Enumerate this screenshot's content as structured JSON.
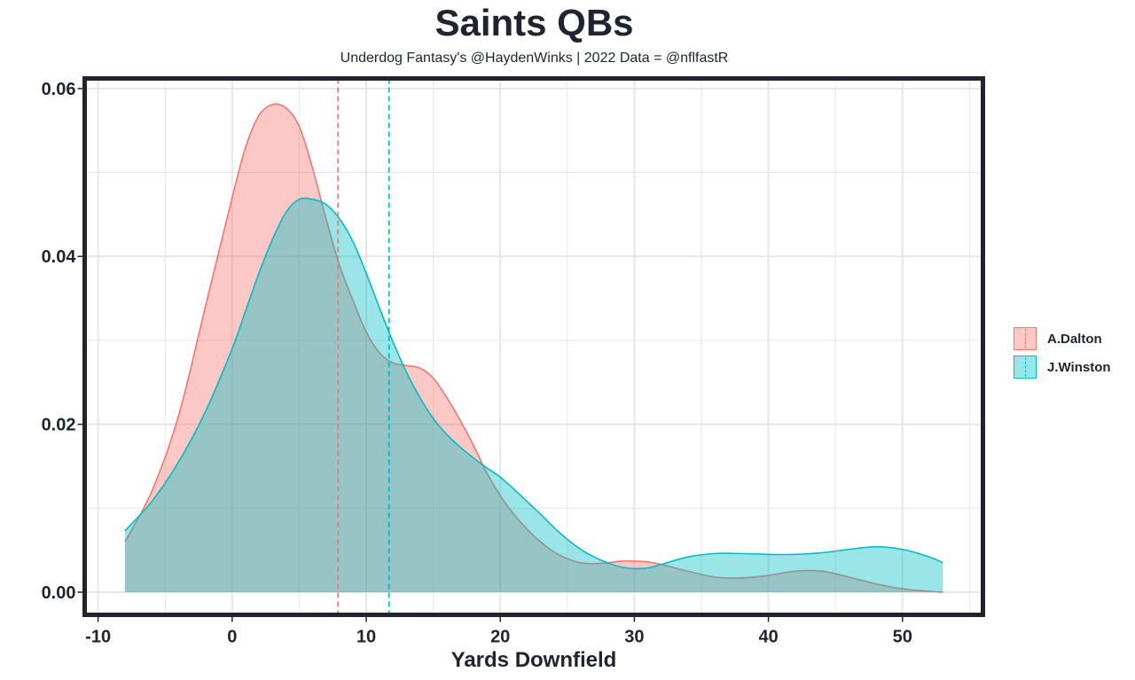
{
  "header": {
    "title": "Saints QBs",
    "subtitle": "Underdog Fantasy's @HaydenWinks | 2022 Data = @nflfastR"
  },
  "colors": {
    "dalton": "#F8766D",
    "winston": "#00BFC4",
    "panel_border": "#1f2430",
    "grid": "#e6e6e6"
  },
  "chart_data": {
    "type": "area",
    "title": "Saints QBs",
    "subtitle": "Underdog Fantasy's @HaydenWinks | 2022 Data = @nflfastR",
    "xlabel": "Yards Downfield",
    "ylabel": "",
    "xlim": [
      -11,
      56
    ],
    "ylim": [
      -0.0027,
      0.0612
    ],
    "x_ticks": [
      -10,
      0,
      10,
      20,
      30,
      40,
      50
    ],
    "x_tick_labels": [
      "-10",
      "0",
      "10",
      "20",
      "30",
      "40",
      "50"
    ],
    "y_ticks": [
      0,
      0.02,
      0.04,
      0.06
    ],
    "y_tick_labels": [
      "0.00",
      "0.02",
      "0.04",
      "0.06"
    ],
    "grid": true,
    "legend_position": "right",
    "series": [
      {
        "name": "A.Dalton",
        "color": "#F8766D",
        "mean_line_x": 7.9,
        "points": [
          [
            -8,
            0.006
          ],
          [
            -6,
            0.012
          ],
          [
            -4,
            0.021
          ],
          [
            -2,
            0.034
          ],
          [
            0,
            0.047
          ],
          [
            1,
            0.053
          ],
          [
            2,
            0.0568
          ],
          [
            3,
            0.0581
          ],
          [
            4,
            0.0577
          ],
          [
            5,
            0.0555
          ],
          [
            6,
            0.0505
          ],
          [
            7,
            0.0445
          ],
          [
            8,
            0.039
          ],
          [
            9,
            0.0348
          ],
          [
            10,
            0.031
          ],
          [
            11,
            0.0285
          ],
          [
            12,
            0.0273
          ],
          [
            13,
            0.027
          ],
          [
            14,
            0.0267
          ],
          [
            15,
            0.0255
          ],
          [
            16,
            0.0232
          ],
          [
            17,
            0.0205
          ],
          [
            18,
            0.0175
          ],
          [
            19,
            0.0142
          ],
          [
            20,
            0.0115
          ],
          [
            21,
            0.0093
          ],
          [
            22,
            0.0075
          ],
          [
            23,
            0.006
          ],
          [
            24,
            0.0048
          ],
          [
            25,
            0.004
          ],
          [
            26,
            0.0035
          ],
          [
            27,
            0.0034
          ],
          [
            28,
            0.0035
          ],
          [
            29,
            0.0037
          ],
          [
            30,
            0.0037
          ],
          [
            31,
            0.0036
          ],
          [
            32,
            0.0033
          ],
          [
            34,
            0.0025
          ],
          [
            36,
            0.0018
          ],
          [
            38,
            0.0017
          ],
          [
            40,
            0.002
          ],
          [
            42,
            0.0025
          ],
          [
            44,
            0.0025
          ],
          [
            46,
            0.0018
          ],
          [
            48,
            0.001
          ],
          [
            50,
            0.0004
          ],
          [
            52,
            0.0001
          ],
          [
            53,
            0.0
          ]
        ]
      },
      {
        "name": "J.Winston",
        "color": "#00BFC4",
        "mean_line_x": 11.7,
        "points": [
          [
            -8,
            0.0073
          ],
          [
            -6,
            0.0108
          ],
          [
            -4,
            0.0155
          ],
          [
            -2,
            0.0215
          ],
          [
            0,
            0.029
          ],
          [
            1,
            0.0335
          ],
          [
            2,
            0.038
          ],
          [
            3,
            0.042
          ],
          [
            4,
            0.0452
          ],
          [
            5,
            0.0468
          ],
          [
            6,
            0.0468
          ],
          [
            7,
            0.0462
          ],
          [
            8,
            0.0445
          ],
          [
            9,
            0.0418
          ],
          [
            10,
            0.038
          ],
          [
            11,
            0.0338
          ],
          [
            12,
            0.0298
          ],
          [
            13,
            0.0262
          ],
          [
            14,
            0.0232
          ],
          [
            15,
            0.0207
          ],
          [
            16,
            0.0188
          ],
          [
            17,
            0.0173
          ],
          [
            18,
            0.016
          ],
          [
            19,
            0.0148
          ],
          [
            20,
            0.0137
          ],
          [
            21,
            0.0123
          ],
          [
            22,
            0.0108
          ],
          [
            23,
            0.0093
          ],
          [
            24,
            0.0077
          ],
          [
            25,
            0.0063
          ],
          [
            26,
            0.0051
          ],
          [
            27,
            0.0042
          ],
          [
            28,
            0.0035
          ],
          [
            29,
            0.003
          ],
          [
            30,
            0.0028
          ],
          [
            31,
            0.0029
          ],
          [
            32,
            0.0033
          ],
          [
            34,
            0.0042
          ],
          [
            36,
            0.0046
          ],
          [
            38,
            0.0046
          ],
          [
            40,
            0.0045
          ],
          [
            42,
            0.0045
          ],
          [
            44,
            0.0047
          ],
          [
            46,
            0.0051
          ],
          [
            48,
            0.0054
          ],
          [
            50,
            0.0051
          ],
          [
            52,
            0.0042
          ],
          [
            53,
            0.0035
          ]
        ]
      }
    ]
  }
}
